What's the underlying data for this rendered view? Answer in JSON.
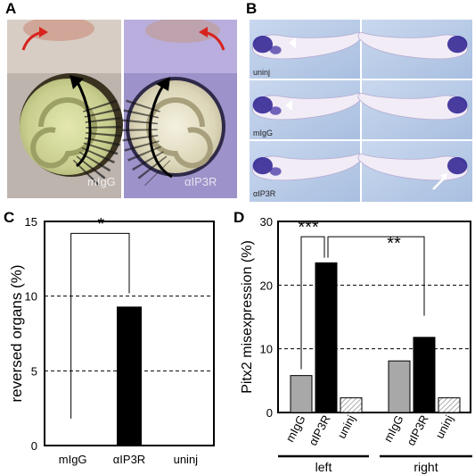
{
  "panels": {
    "a": {
      "letter": "A",
      "left_label": "mIgG",
      "right_label": "αIP3R"
    },
    "b": {
      "letter": "B",
      "row_labels": [
        "uninj",
        "mIgG",
        "αIP3R"
      ]
    },
    "c": {
      "letter": "C"
    },
    "d": {
      "letter": "D"
    }
  },
  "colors": {
    "gray_bar": "#a8a8a8",
    "black_bar": "#000000",
    "hatch_bar": "#ffffff",
    "arrow_red": "#d8231c",
    "arrow_black": "#000000",
    "embryo_stain": "#2b1d8f"
  },
  "chart_data": [
    {
      "type": "bar",
      "panel": "C",
      "categories": [
        "mIgG",
        "αIP3R",
        "uninj"
      ],
      "values": [
        0,
        9.3,
        0
      ],
      "ylabel": "reversed organs (%)",
      "ylim": [
        0,
        15
      ],
      "yticks": [
        0,
        5,
        10,
        15
      ],
      "reference_lines": [
        5,
        10
      ],
      "significance": [
        {
          "from": "mIgG",
          "to": "αIP3R",
          "label": "*"
        }
      ]
    },
    {
      "type": "bar",
      "panel": "D",
      "groups": [
        "left",
        "right"
      ],
      "categories": [
        "mIgG",
        "αIP3R",
        "uninj",
        "mIgG",
        "αIP3R",
        "uninj"
      ],
      "values": [
        5.8,
        23.5,
        2.3,
        8.1,
        11.8,
        2.3
      ],
      "ylabel": "Pitx2 misexpression (%)",
      "ylim": [
        0,
        30
      ],
      "yticks": [
        0,
        10,
        20,
        30
      ],
      "reference_lines": [
        10,
        20
      ],
      "significance": [
        {
          "from": "mIgG (left)",
          "to": "αIP3R (left)",
          "label": "***"
        },
        {
          "from": "αIP3R (left)",
          "to": "αIP3R (right)",
          "label": "**"
        }
      ]
    }
  ]
}
